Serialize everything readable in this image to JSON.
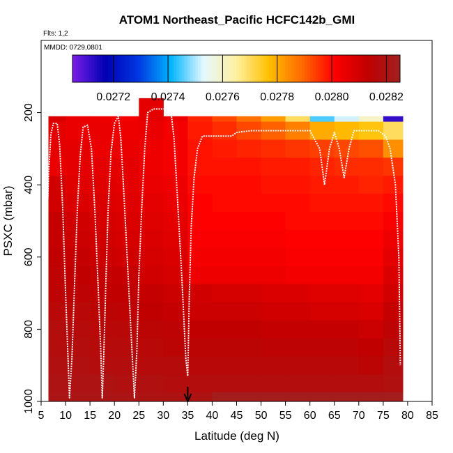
{
  "chart_data": {
    "type": "heatmap",
    "title": "ATOM1 Northeast_Pacific HCFC142b_GMI",
    "flights_note": "Flts: 1,2",
    "dates_note": "MMDD: 0729,0801",
    "xlabel": "Latitude (deg N)",
    "ylabel": "PSXC (mbar)",
    "xlim": [
      5,
      85
    ],
    "ylim": [
      1000,
      0
    ],
    "x_ticks": [
      "5",
      "10",
      "15",
      "20",
      "25",
      "30",
      "35",
      "40",
      "45",
      "50",
      "55",
      "60",
      "65",
      "70",
      "75",
      "80",
      "85"
    ],
    "y_ticks": [
      "200",
      "400",
      "600",
      "800",
      "1000"
    ],
    "colorbar": {
      "range": [
        0.02705,
        0.02825
      ],
      "tick_labels": [
        "0.0272",
        "0.0274",
        "0.0276",
        "0.0278",
        "0.0280",
        "0.0282"
      ],
      "tick_values": [
        0.0272,
        0.0274,
        0.0276,
        0.0278,
        0.028,
        0.0282
      ],
      "colors": [
        "#7a1ee8",
        "#0000b4",
        "#0036e0",
        "#00b4ff",
        "#e6f8ff",
        "#fff0a0",
        "#ffc000",
        "#ff6a00",
        "#ff0000",
        "#c00000",
        "#a02020"
      ]
    },
    "marker_latitude": 35,
    "pressure_levels": [
      200,
      250,
      300,
      350,
      400,
      450,
      500,
      550,
      600,
      650,
      700,
      750,
      800,
      850,
      900,
      950,
      1000
    ],
    "profile_columns": [
      {
        "lat_start": 6.5,
        "top": 210,
        "values": [
          0.02808,
          0.02806,
          0.02806,
          0.02805,
          0.0281,
          0.0281,
          0.02812,
          0.02812,
          0.02813,
          0.02814,
          0.02814,
          0.02816,
          0.02818,
          0.02818,
          0.02819,
          0.0282,
          0.02821
        ]
      },
      {
        "lat_start": 10,
        "top": 210,
        "values": [
          0.02805,
          0.02805,
          0.02806,
          0.02806,
          0.02807,
          0.02808,
          0.0281,
          0.02811,
          0.02812,
          0.02813,
          0.02814,
          0.02816,
          0.02817,
          0.02818,
          0.02819,
          0.0282,
          0.02821
        ]
      },
      {
        "lat_start": 15,
        "top": 210,
        "values": [
          0.02804,
          0.02805,
          0.02805,
          0.02806,
          0.02807,
          0.02808,
          0.02809,
          0.0281,
          0.02811,
          0.02812,
          0.02813,
          0.02815,
          0.02816,
          0.02817,
          0.02818,
          0.0282,
          0.02821
        ]
      },
      {
        "lat_start": 20,
        "top": 210,
        "values": [
          0.02803,
          0.02804,
          0.02805,
          0.02806,
          0.02806,
          0.02807,
          0.02808,
          0.02809,
          0.0281,
          0.02812,
          0.02813,
          0.02814,
          0.02816,
          0.02817,
          0.02818,
          0.02819,
          0.02821
        ]
      },
      {
        "lat_start": 25,
        "top": 160,
        "values": [
          0.02806,
          0.02805,
          0.02804,
          0.02804,
          0.02805,
          0.02806,
          0.02807,
          0.02808,
          0.02809,
          0.0281,
          0.02812,
          0.02813,
          0.02815,
          0.02816,
          0.02817,
          0.02819,
          0.0282
        ]
      },
      {
        "lat_start": 30,
        "top": 210,
        "values": [
          0.02804,
          0.02803,
          0.02803,
          0.02803,
          0.02804,
          0.02805,
          0.02806,
          0.02807,
          0.02808,
          0.02809,
          0.02811,
          0.02812,
          0.02814,
          0.02815,
          0.02817,
          0.02818,
          0.0282
        ]
      },
      {
        "lat_start": 35,
        "top": 210,
        "values": [
          0.02797,
          0.02798,
          0.02799,
          0.02799,
          0.028,
          0.02801,
          0.02801,
          0.02802,
          0.02803,
          0.02804,
          0.0281,
          0.02811,
          0.02813,
          0.02815,
          0.02816,
          0.02818,
          0.0282
        ]
      },
      {
        "lat_start": 40,
        "top": 210,
        "values": [
          0.02793,
          0.02796,
          0.02798,
          0.02799,
          0.028,
          0.028,
          0.02801,
          0.02802,
          0.02803,
          0.02804,
          0.02809,
          0.02811,
          0.02813,
          0.02815,
          0.02816,
          0.02818,
          0.02824
        ]
      },
      {
        "lat_start": 45,
        "top": 210,
        "values": [
          0.02788,
          0.02793,
          0.02797,
          0.02799,
          0.028,
          0.028,
          0.02801,
          0.02802,
          0.02803,
          0.02804,
          0.02809,
          0.02811,
          0.02813,
          0.02815,
          0.02816,
          0.02818,
          0.02824
        ]
      },
      {
        "lat_start": 50,
        "top": 210,
        "values": [
          0.02782,
          0.0279,
          0.02796,
          0.02798,
          0.02799,
          0.028,
          0.02801,
          0.02802,
          0.02803,
          0.02804,
          0.02808,
          0.0281,
          0.02812,
          0.02814,
          0.02816,
          0.02818,
          0.02824
        ]
      },
      {
        "lat_start": 55,
        "top": 210,
        "values": [
          0.0277,
          0.02786,
          0.02795,
          0.02798,
          0.02799,
          0.028,
          0.028,
          0.02801,
          0.02802,
          0.02803,
          0.02808,
          0.0281,
          0.02812,
          0.02814,
          0.02816,
          0.02818,
          0.02824
        ]
      },
      {
        "lat_start": 60,
        "top": 210,
        "values": [
          0.02745,
          0.0278,
          0.02794,
          0.02797,
          0.02798,
          0.02799,
          0.028,
          0.02801,
          0.02802,
          0.02803,
          0.02807,
          0.02809,
          0.02812,
          0.02814,
          0.02816,
          0.02818,
          0.02824
        ]
      },
      {
        "lat_start": 65,
        "top": 210,
        "values": [
          0.02752,
          0.02778,
          0.02793,
          0.02796,
          0.02798,
          0.02799,
          0.028,
          0.02801,
          0.02802,
          0.02803,
          0.02807,
          0.02809,
          0.02812,
          0.02814,
          0.02816,
          0.02818,
          0.02824
        ]
      },
      {
        "lat_start": 70,
        "top": 210,
        "values": [
          0.0276,
          0.02776,
          0.02792,
          0.02796,
          0.02797,
          0.02799,
          0.028,
          0.02801,
          0.02802,
          0.02803,
          0.02806,
          0.02808,
          0.02811,
          0.02813,
          0.02815,
          0.02818,
          0.02824
        ]
      },
      {
        "lat_start": 75,
        "top": 210,
        "values": [
          0.02712,
          0.0277,
          0.02784,
          0.02795,
          0.02798,
          0.028,
          0.02802,
          0.02804,
          0.02806,
          0.02808,
          0.0281,
          0.02812,
          0.02814,
          0.02816,
          0.02818,
          0.02819,
          0.02824
        ]
      }
    ],
    "flight_track": [
      [
        5.4,
        1000
      ],
      [
        5.7,
        780
      ],
      [
        6.1,
        560
      ],
      [
        6.5,
        380
      ],
      [
        7,
        260
      ],
      [
        7.5,
        230
      ],
      [
        8.3,
        230
      ],
      [
        8.8,
        290
      ],
      [
        9.4,
        460
      ],
      [
        10,
        700
      ],
      [
        10.5,
        880
      ],
      [
        10.8,
        990
      ],
      [
        11.3,
        880
      ],
      [
        11.8,
        690
      ],
      [
        12.4,
        470
      ],
      [
        13,
        320
      ],
      [
        13.6,
        240
      ],
      [
        14.5,
        235
      ],
      [
        15.3,
        300
      ],
      [
        16,
        470
      ],
      [
        16.7,
        690
      ],
      [
        17.2,
        860
      ],
      [
        17.5,
        990
      ],
      [
        17.8,
        880
      ],
      [
        18.2,
        690
      ],
      [
        18.7,
        470
      ],
      [
        19.3,
        310
      ],
      [
        20,
        230
      ],
      [
        20.8,
        210
      ],
      [
        21.3,
        270
      ],
      [
        22,
        440
      ],
      [
        22.8,
        650
      ],
      [
        23.6,
        860
      ],
      [
        24.1,
        990
      ],
      [
        24.6,
        860
      ],
      [
        25,
        650
      ],
      [
        25.6,
        460
      ],
      [
        26.2,
        300
      ],
      [
        26.8,
        200
      ],
      [
        28,
        190
      ],
      [
        31.5,
        190
      ],
      [
        32.2,
        270
      ],
      [
        33,
        460
      ],
      [
        33.8,
        660
      ],
      [
        34.6,
        880
      ],
      [
        35,
        930
      ],
      [
        35.3,
        720
      ],
      [
        35.7,
        520
      ],
      [
        36.3,
        380
      ],
      [
        37,
        300
      ],
      [
        38,
        265
      ],
      [
        42,
        265
      ],
      [
        44,
        265
      ],
      [
        45,
        255
      ],
      [
        48,
        250
      ],
      [
        55,
        250
      ],
      [
        60,
        250
      ],
      [
        62,
        300
      ],
      [
        63,
        400
      ],
      [
        64,
        300
      ],
      [
        65,
        255
      ],
      [
        66,
        300
      ],
      [
        67,
        380
      ],
      [
        68,
        300
      ],
      [
        69,
        250
      ],
      [
        72,
        250
      ],
      [
        74,
        250
      ],
      [
        75.5,
        265
      ],
      [
        76.4,
        300
      ],
      [
        77.5,
        400
      ],
      [
        78.2,
        600
      ],
      [
        78.5,
        900
      ]
    ]
  }
}
